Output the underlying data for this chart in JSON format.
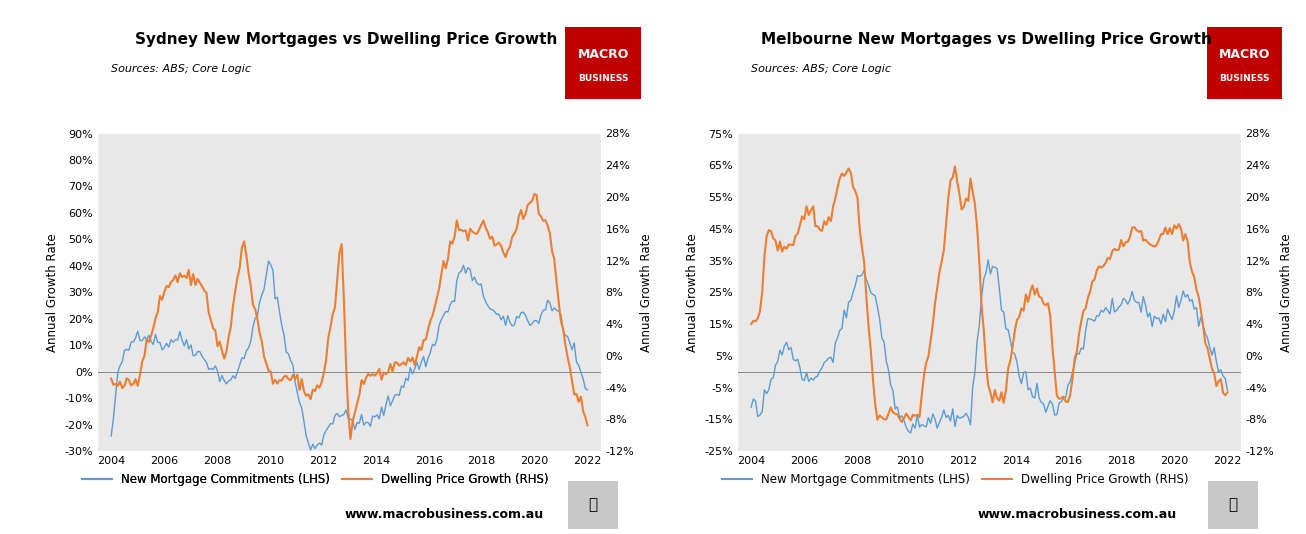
{
  "title_sydney": "Sydney New Mortgages vs Dwelling Price Growth",
  "title_melbourne": "Melbourne New Mortgages vs Dwelling Price Growth",
  "source_text": "Sources: ABS; Core Logic",
  "ylabel_left": "Annual Growth Rate",
  "ylabel_right": "Annual Growth Rate",
  "legend_lhs": "New Mortgage Commitments (LHS)",
  "legend_rhs": "Dwelling Price Growth (RHS)",
  "website": "www.macrobusiness.com.au",
  "color_blue": "#5B9BD5",
  "color_orange": "#ED7D31",
  "color_bg": "#E8E8E8",
  "macro_bg": "#C00000",
  "lhs_ylim_syd": [
    -30,
    90
  ],
  "rhs_ylim_syd": [
    -12,
    28
  ],
  "lhs_ylim_mel": [
    -25,
    75
  ],
  "rhs_ylim_mel": [
    -12,
    28
  ],
  "lhs_yticks_syd": [
    -30,
    -20,
    -10,
    0,
    10,
    20,
    30,
    40,
    50,
    60,
    70,
    80,
    90
  ],
  "rhs_yticks_syd": [
    -12,
    -8,
    -4,
    0,
    4,
    8,
    12,
    16,
    20,
    24,
    28
  ],
  "lhs_yticks_mel": [
    -25,
    -15,
    -5,
    5,
    15,
    25,
    35,
    45,
    55,
    65,
    75
  ],
  "rhs_yticks_mel": [
    -12,
    -8,
    -4,
    0,
    4,
    8,
    12,
    16,
    20,
    24,
    28
  ],
  "xticks": [
    2004,
    2006,
    2008,
    2010,
    2012,
    2014,
    2016,
    2018,
    2020,
    2022
  ],
  "xlim": [
    2003.5,
    2022.5
  ]
}
